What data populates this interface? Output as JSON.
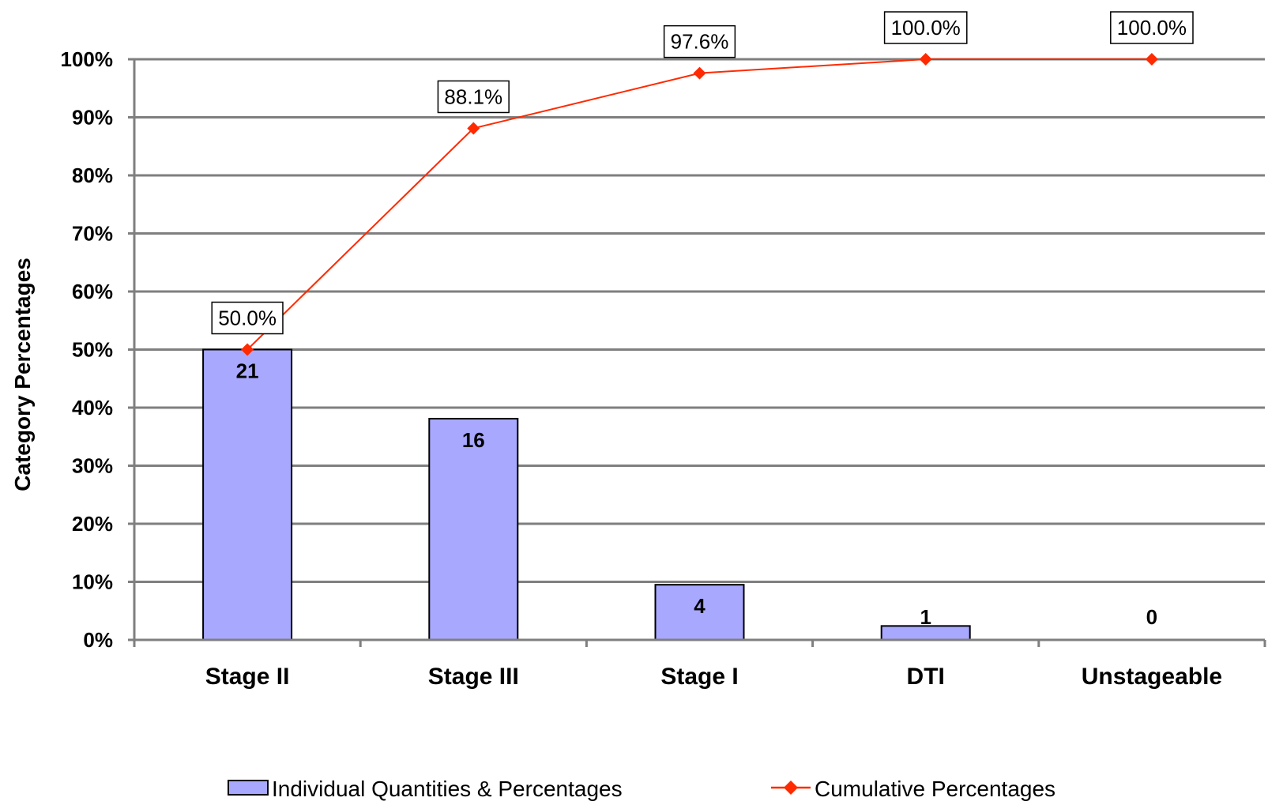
{
  "chart_data": {
    "type": "bar",
    "title": "",
    "xlabel": "",
    "ylabel": "Category Percentages",
    "ylim": [
      0,
      100
    ],
    "y_ticks": [
      "0%",
      "10%",
      "20%",
      "30%",
      "40%",
      "50%",
      "60%",
      "70%",
      "80%",
      "90%",
      "100%"
    ],
    "grid": true,
    "legend_position": "bottom",
    "categories": [
      "Stage II",
      "Stage III",
      "Stage I",
      "DTI",
      "Unstageable"
    ],
    "series": [
      {
        "name": "Individual Quantities & Percentages",
        "type": "bar",
        "color": "#a8a8ff",
        "counts": [
          21,
          16,
          4,
          1,
          0
        ],
        "labels": [
          "21",
          "16",
          "4",
          "1",
          "0"
        ],
        "values": [
          50.0,
          38.1,
          9.5,
          2.4,
          0.0
        ]
      },
      {
        "name": "Cumulative Percentages",
        "type": "line",
        "color": "#ff2a00",
        "values": [
          50.0,
          88.1,
          97.6,
          100.0,
          100.0
        ],
        "labels": [
          "50.0%",
          "88.1%",
          "97.6%",
          "100.0%",
          "100.0%"
        ]
      }
    ]
  }
}
